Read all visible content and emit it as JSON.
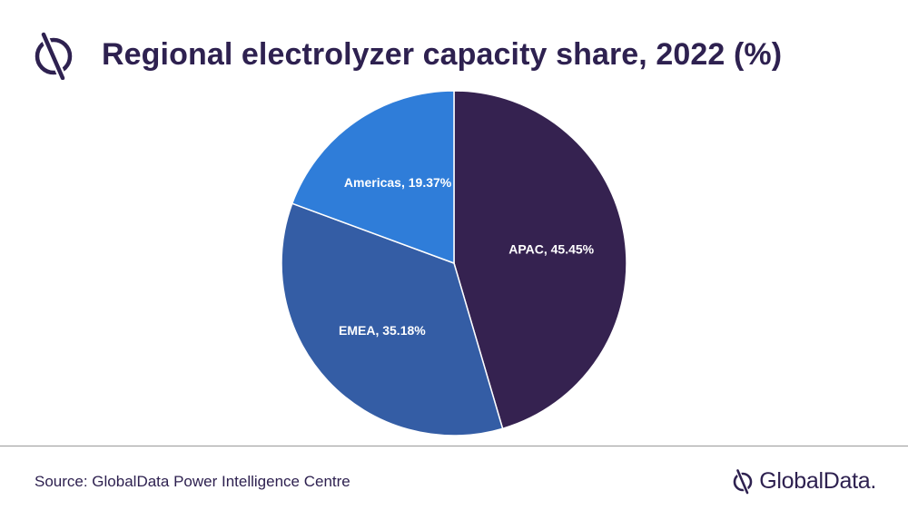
{
  "colors": {
    "title": "#2e2150",
    "apac": "#352250",
    "emea": "#345da5",
    "americas": "#2f7dd9",
    "text": "#2e2150"
  },
  "header": {
    "title": "Regional electrolyzer capacity share, 2022 (%)"
  },
  "chart_data": {
    "type": "pie",
    "title": "Regional electrolyzer capacity share, 2022 (%)",
    "slices": [
      {
        "name": "APAC",
        "value": 45.45,
        "label": "APAC, 45.45%"
      },
      {
        "name": "EMEA",
        "value": 35.18,
        "label": "EMEA, 35.18%"
      },
      {
        "name": "Americas",
        "value": 19.37,
        "label": "Americas, 19.37%"
      }
    ]
  },
  "footer": {
    "source": "Source: GlobalData Power Intelligence Centre",
    "logo_text": "GlobalData."
  }
}
